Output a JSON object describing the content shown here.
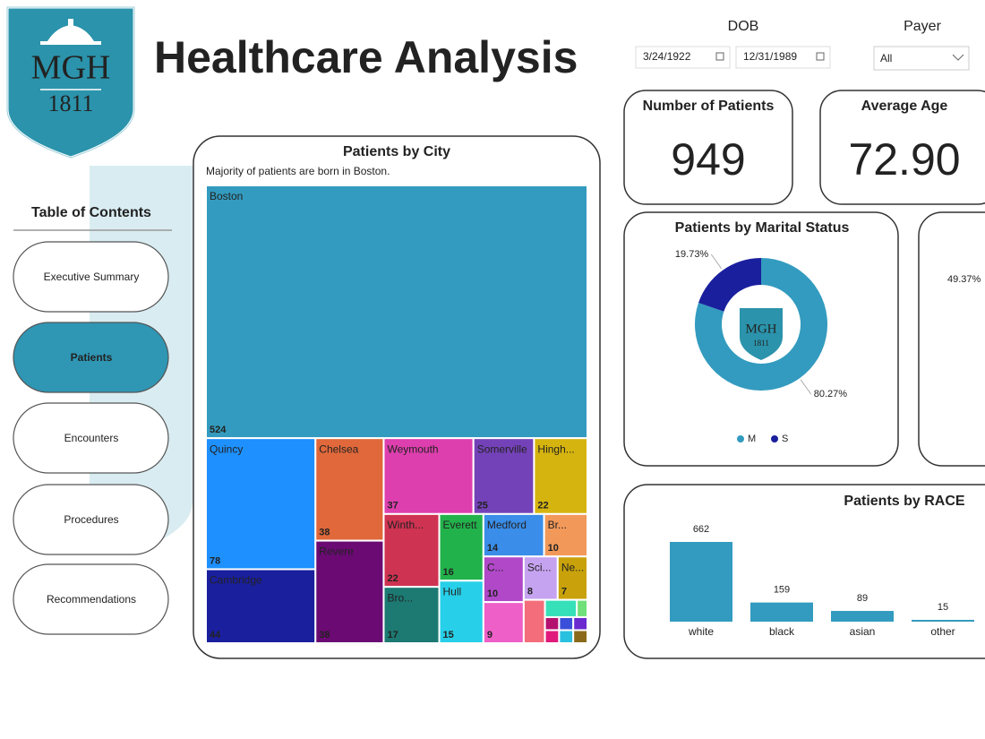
{
  "header": {
    "title": "Healthcare Analysis",
    "logo_text": "MGH",
    "logo_year": "1811"
  },
  "filters": {
    "dob_label": "DOB",
    "dob_start": "3/24/1922",
    "dob_end": "12/31/1989",
    "payer_label": "Payer",
    "payer_value": "All"
  },
  "nav": {
    "title": "Table of Contents",
    "items": [
      "Executive Summary",
      "Patients",
      "Encounters",
      "Procedures",
      "Recommendations"
    ]
  },
  "cards": [
    {
      "label": "Number of Patients",
      "value": "949"
    },
    {
      "label": "Average Age",
      "value": "72.90"
    }
  ],
  "clipped_card": {
    "value": "49.37%"
  },
  "chart_data": [
    {
      "type": "treemap",
      "title": "Patients by City",
      "subtitle": "Majority of patients are born in Boston.",
      "categories": [
        "Boston",
        "Quincy",
        "Cambridge",
        "Chelsea",
        "Revere",
        "Weymouth",
        "Somerville",
        "Hingh...",
        "Winth...",
        "Bro...",
        "Everett",
        "Hull",
        "Medford",
        "Br...",
        "C...",
        null,
        "Sci...",
        "Ne...",
        null,
        null,
        null,
        null,
        null,
        null,
        null,
        null,
        null
      ],
      "values": [
        524,
        78,
        44,
        38,
        38,
        37,
        25,
        22,
        22,
        17,
        16,
        15,
        14,
        10,
        10,
        9,
        8,
        7,
        5,
        3,
        1,
        1,
        1,
        1,
        1,
        1,
        1
      ],
      "colors": [
        "#339bbf",
        "#1e90ff",
        "#1a1f9e",
        "#e0683a",
        "#6b0a73",
        "#dd3fae",
        "#7442b8",
        "#d6b40f",
        "#cf3352",
        "#1c7a72",
        "#22b24b",
        "#27d0e8",
        "#3a8de8",
        "#f2995a",
        "#b048c8",
        "#ee5fc8",
        "#c6a3f0",
        "#c9a20b",
        "#f46d7a",
        "#36e0b8",
        "#6fe07a",
        "#b31070",
        "#e01a7a",
        "#3a4fd9",
        "#2ac0e0",
        "#6a2ad0",
        "#8a6a1a"
      ]
    },
    {
      "type": "donut",
      "title": "Patients by Marital Status",
      "categories": [
        "M",
        "S"
      ],
      "values": [
        80.27,
        19.73
      ],
      "value_labels": [
        "80.27%",
        "19.73%"
      ],
      "colors": [
        "#339bbf",
        "#1a1f9e"
      ],
      "legend": "bottom"
    },
    {
      "type": "bar",
      "title": "Patients by RACE",
      "categories": [
        "white",
        "black",
        "asian",
        "other"
      ],
      "values": [
        662,
        159,
        89,
        15
      ],
      "color": "#339bbf"
    }
  ]
}
